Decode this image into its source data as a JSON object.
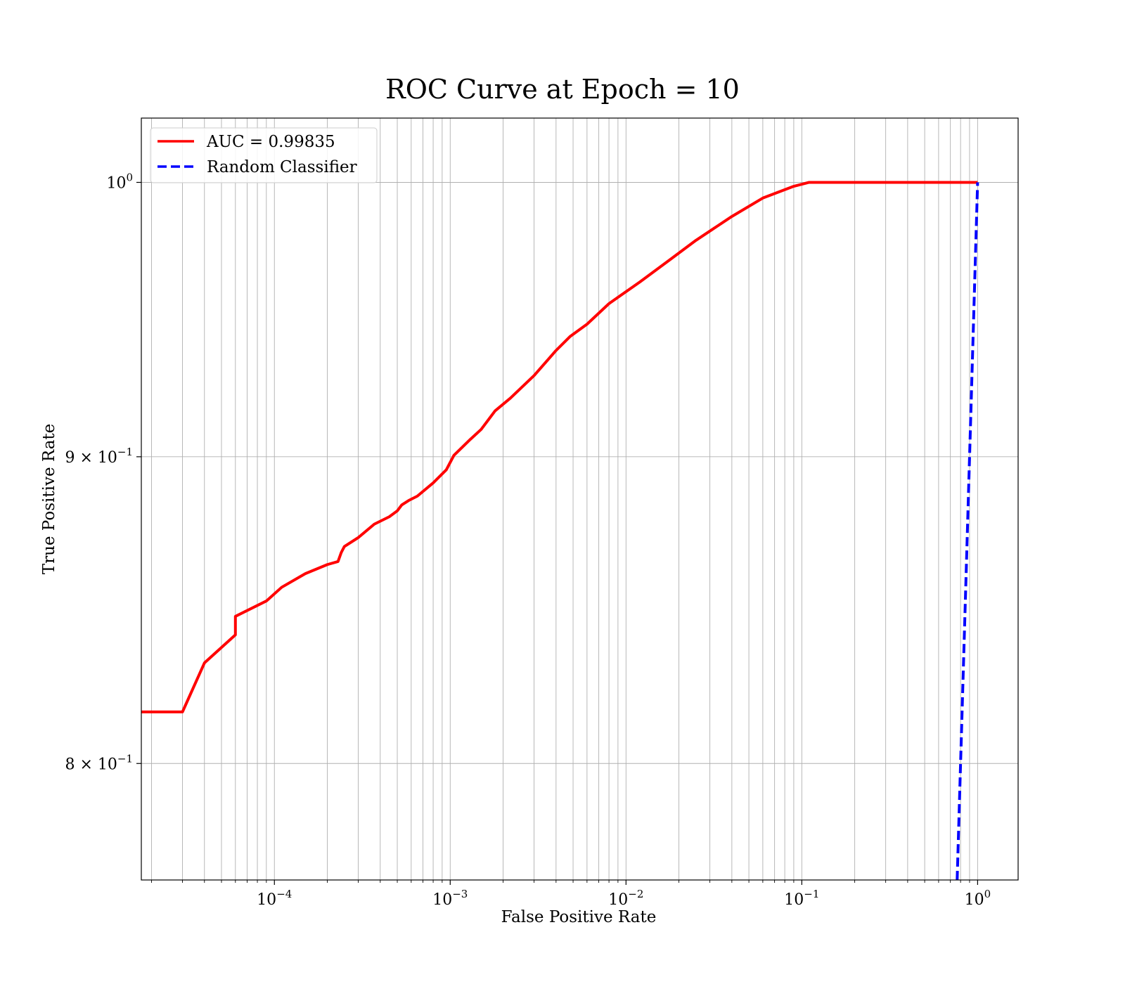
{
  "chart_data": {
    "type": "line",
    "title": "ROC Curve at Epoch = 10",
    "xlabel": "False Positive Rate",
    "ylabel": "True Positive Rate",
    "xscale": "log",
    "yscale": "log",
    "xlim": [
      1.75e-05,
      1.7
    ],
    "ylim": [
      0.765,
      1.025
    ],
    "x_ticks": [
      {
        "value": 0.0001,
        "base": "10",
        "exp": "−4"
      },
      {
        "value": 0.001,
        "base": "10",
        "exp": "−3"
      },
      {
        "value": 0.01,
        "base": "10",
        "exp": "−2"
      },
      {
        "value": 0.1,
        "base": "10",
        "exp": "−1"
      },
      {
        "value": 1,
        "base": "10",
        "exp": "0"
      }
    ],
    "y_ticks": [
      {
        "value": 0.8,
        "mant": "8 × 10",
        "exp": "−1"
      },
      {
        "value": 0.9,
        "mant": "9 × 10",
        "exp": "−1"
      },
      {
        "value": 1.0,
        "mant": "10",
        "exp": "0"
      }
    ],
    "grid": true,
    "legend_position": "top-left",
    "series": [
      {
        "name": "AUC = 0.99835",
        "color": "#ff0000",
        "style": "solid",
        "points": [
          [
            1.75e-05,
            0.816
          ],
          [
            3e-05,
            0.816
          ],
          [
            4e-05,
            0.8315
          ],
          [
            6e-05,
            0.8405
          ],
          [
            6e-05,
            0.8465
          ],
          [
            9e-05,
            0.8515
          ],
          [
            0.00011,
            0.856
          ],
          [
            0.00015,
            0.8605
          ],
          [
            0.0002,
            0.8635
          ],
          [
            0.00023,
            0.8645
          ],
          [
            0.00024,
            0.8675
          ],
          [
            0.00025,
            0.8695
          ],
          [
            0.0003,
            0.8725
          ],
          [
            0.00037,
            0.877
          ],
          [
            0.00045,
            0.8795
          ],
          [
            0.0005,
            0.8815
          ],
          [
            0.00053,
            0.8835
          ],
          [
            0.00058,
            0.885
          ],
          [
            0.00065,
            0.8865
          ],
          [
            0.0008,
            0.891
          ],
          [
            0.00095,
            0.8955
          ],
          [
            0.00105,
            0.9005
          ],
          [
            0.0013,
            0.906
          ],
          [
            0.0015,
            0.9095
          ],
          [
            0.0018,
            0.916
          ],
          [
            0.0022,
            0.9205
          ],
          [
            0.003,
            0.9285
          ],
          [
            0.004,
            0.9375
          ],
          [
            0.0048,
            0.9425
          ],
          [
            0.006,
            0.947
          ],
          [
            0.008,
            0.9545
          ],
          [
            0.012,
            0.9625
          ],
          [
            0.018,
            0.971
          ],
          [
            0.025,
            0.978
          ],
          [
            0.04,
            0.987
          ],
          [
            0.06,
            0.994
          ],
          [
            0.09,
            0.9985
          ],
          [
            0.11,
            1.0
          ],
          [
            1.0,
            1.0
          ]
        ]
      },
      {
        "name": "Random Classifier",
        "color": "#0000ff",
        "style": "dashed",
        "points": [
          [
            0.765,
            0.765
          ],
          [
            1.0,
            1.0
          ]
        ]
      }
    ]
  }
}
